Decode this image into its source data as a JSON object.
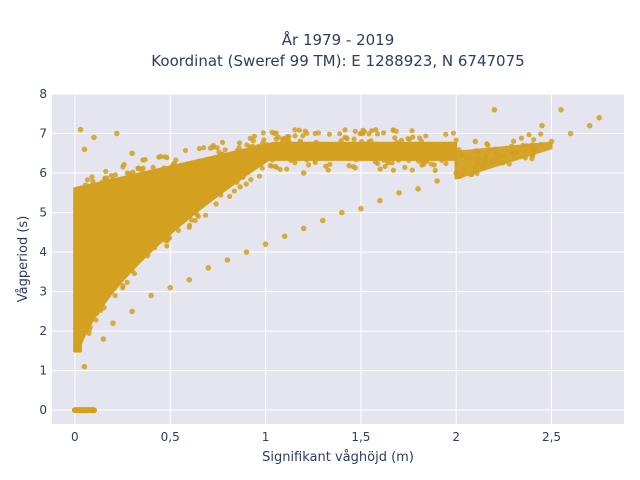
{
  "chart_data": {
    "type": "scatter",
    "title_line1": "År 1979 - 2019",
    "title_line2": "Koordinat (Sweref 99 TM): E 1288923, N 6747075",
    "xlabel": "Signifikant våghöjd (m)",
    "ylabel": "Vågperiod (s)",
    "xlim": [
      -0.12,
      2.88
    ],
    "ylim": [
      -0.35,
      8.0
    ],
    "x_ticks": [
      0,
      0.5,
      1,
      1.5,
      2,
      2.5
    ],
    "x_tick_labels": [
      "0",
      "0,5",
      "1",
      "1,5",
      "2",
      "2,5"
    ],
    "y_ticks": [
      0,
      1,
      2,
      3,
      4,
      5,
      6,
      7,
      8
    ],
    "y_tick_labels": [
      "0",
      "1",
      "2",
      "3",
      "4",
      "5",
      "6",
      "7",
      "8"
    ],
    "grid": true,
    "colors": {
      "marker": "#D4A020",
      "plot_bg": "#E5E5EF",
      "grid": "#ffffff"
    },
    "series": [
      {
        "x": [
          0.0,
          0.02,
          0.04,
          0.06,
          0.08,
          0.1,
          0.05,
          0.05,
          0.03,
          0.15,
          0.2,
          0.3,
          0.4,
          0.5,
          0.6,
          0.7,
          0.8,
          0.9,
          1.0,
          1.1,
          1.2,
          1.3,
          1.4,
          1.5,
          1.6,
          1.7,
          1.8,
          1.9,
          2.0,
          2.1,
          2.2,
          2.3,
          2.4,
          2.5,
          2.55,
          2.6,
          2.7,
          2.75,
          0.3,
          0.6,
          1.2,
          1.8,
          2.2,
          2.45,
          0.22,
          0.1,
          0.04,
          1.6,
          2.1
        ],
        "y": [
          0.0,
          0.0,
          0.0,
          0.0,
          0.0,
          0.0,
          1.1,
          6.6,
          7.1,
          1.8,
          2.2,
          2.5,
          2.9,
          3.1,
          3.3,
          3.6,
          3.8,
          4.0,
          4.2,
          4.4,
          4.6,
          4.8,
          5.0,
          5.1,
          5.3,
          5.5,
          5.6,
          5.8,
          6.0,
          6.1,
          6.3,
          6.5,
          6.6,
          6.8,
          7.6,
          7.0,
          7.2,
          7.4,
          6.5,
          6.2,
          6.0,
          6.4,
          7.6,
          7.2,
          7.0,
          6.9,
          5.5,
          6.5,
          6.8
        ]
      }
    ]
  }
}
